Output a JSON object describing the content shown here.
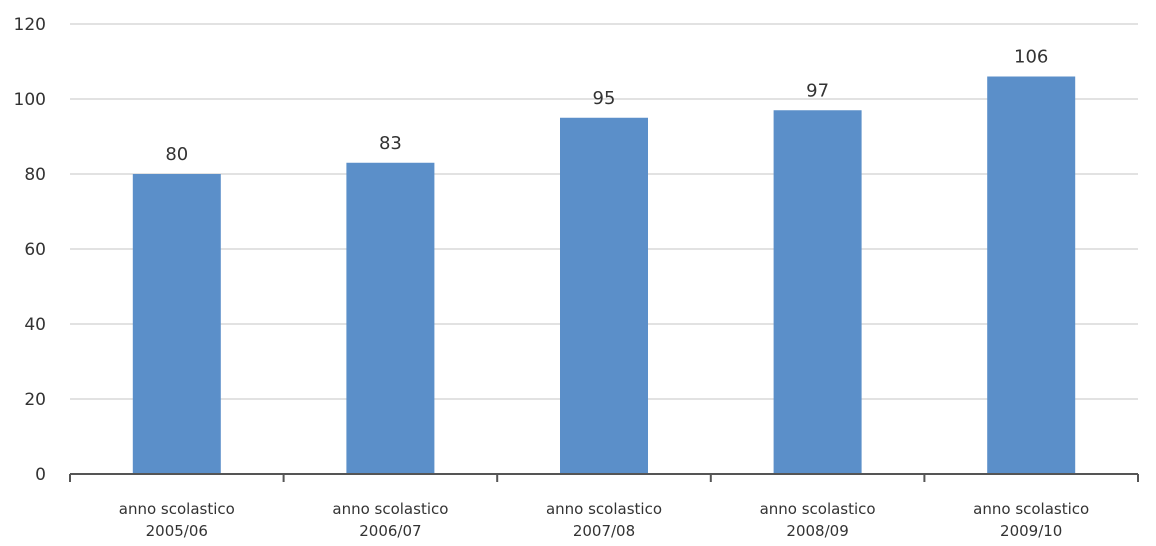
{
  "chart_data": {
    "type": "bar",
    "categories": [
      [
        "anno scolastico",
        "2005/06"
      ],
      [
        "anno scolastico",
        "2006/07"
      ],
      [
        "anno scolastico",
        "2007/08"
      ],
      [
        "anno scolastico",
        "2008/09"
      ],
      [
        "anno scolastico",
        "2009/10"
      ]
    ],
    "values": [
      80,
      83,
      95,
      97,
      106
    ],
    "data_labels": [
      "80",
      "83",
      "95",
      "97",
      "106"
    ],
    "ylim": [
      0,
      120
    ],
    "yticks": [
      0,
      20,
      40,
      60,
      80,
      100,
      120
    ],
    "grid": true,
    "bar_color": "#5b8fc9",
    "title": "",
    "xlabel": "",
    "ylabel": ""
  }
}
